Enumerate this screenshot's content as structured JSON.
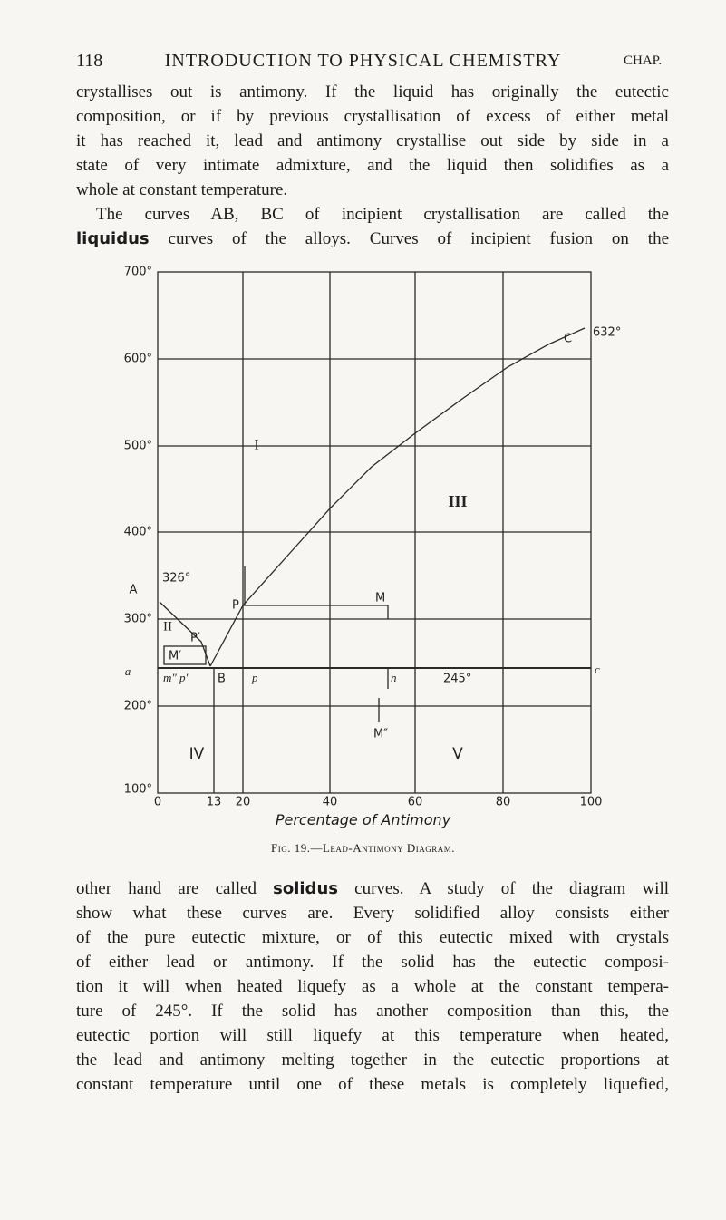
{
  "header": {
    "page": "118",
    "title": "INTRODUCTION TO PHYSICAL CHEMISTRY",
    "chapter": "CHAP."
  },
  "paragraph_1": {
    "lines": [
      "crystallises out is antimony. If the liquid has originally the eutectic",
      "composition, or if by previous crystallisation of excess of either metal",
      "it has reached it, lead and antimony crystallise out side by side in a",
      "state of very intimate admixture, and the liquid then solidifies as a",
      "whole at constant temperature.",
      "The curves AB, BC of incipient crystallisation are called the"
    ],
    "term": "liquidus",
    "term_line_rest": "curves of the alloys. Curves of incipient fusion on the"
  },
  "figure": {
    "y_labels": [
      "700°",
      "600°",
      "500°",
      "400°",
      "300°",
      "200°",
      "100°"
    ],
    "x_labels": [
      "0",
      "13",
      "20",
      "40",
      "60",
      "80",
      "100"
    ],
    "x_title": "Percentage of Antimony",
    "labels": {
      "A": "A",
      "a": "a",
      "t326": "326°",
      "C": "C",
      "t632": "632°",
      "I": "I",
      "III": "III",
      "II": "II",
      "P": "P",
      "P_prime": "P′",
      "M": "M",
      "M_prime": "M′",
      "m_p": "m″ p′",
      "B": "B",
      "p": "p",
      "n": "n",
      "t245": "245°",
      "c": "c",
      "M_double": "M″",
      "IV": "IV",
      "V": "V"
    },
    "caption": "Fig. 19.—Lead-Antimony Diagram."
  },
  "paragraph_2": {
    "first_line_before": "other hand are called",
    "term": "solidus",
    "first_line_after": "curves. A study of the diagram will",
    "lines": [
      "show what these curves are. Every solidified alloy consists either",
      "of the pure eutectic mixture, or of this eutectic mixed with crystals",
      "of either lead or antimony. If the solid has the eutectic composi-",
      "tion it will when heated liquefy as a whole at the constant tempera-",
      "ture of 245°. If the solid has another composition than this, the",
      "eutectic portion will still liquefy at this temperature when heated,",
      "the lead and antimony melting together in the eutectic proportions at",
      "constant temperature until one of these metals is completely liquefied,"
    ]
  }
}
